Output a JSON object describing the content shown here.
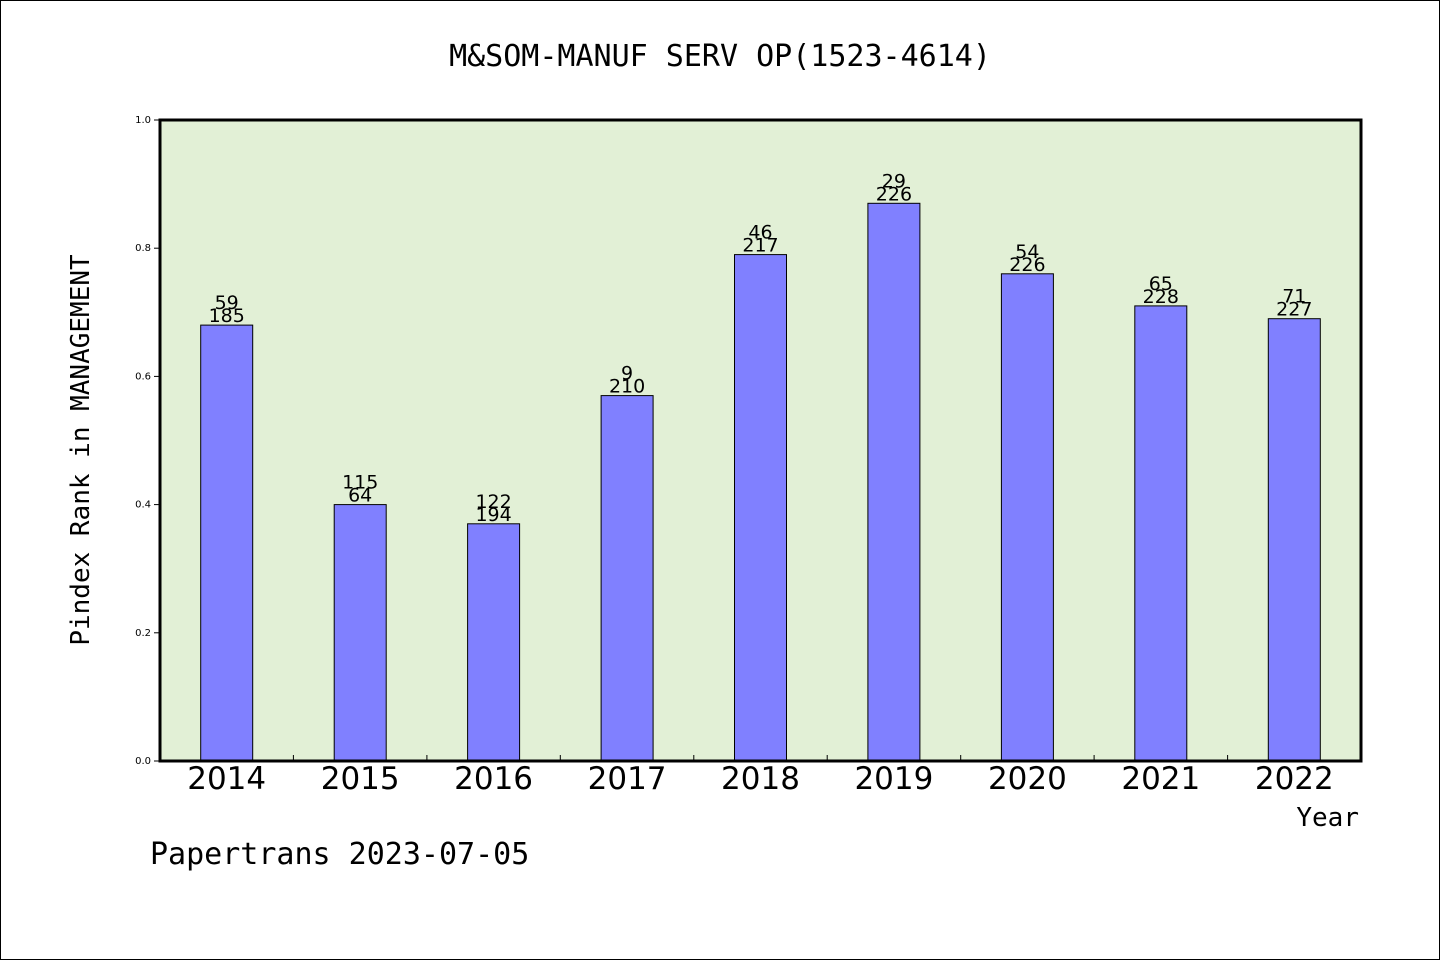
{
  "chart_data": {
    "type": "bar",
    "title": "M&SOM-MANUF SERV OP(1523-4614)",
    "xlabel": "Year",
    "ylabel": "Pindex Rank in MANAGEMENT",
    "ylim": [
      0,
      1.0
    ],
    "yticks": [
      "0.0",
      "0.2",
      "0.4",
      "0.6",
      "0.8",
      "1.0"
    ],
    "categories": [
      "2014",
      "2015",
      "2016",
      "2017",
      "2018",
      "2019",
      "2020",
      "2021",
      "2022"
    ],
    "values": [
      0.68,
      0.4,
      0.37,
      0.57,
      0.79,
      0.87,
      0.76,
      0.71,
      0.69
    ],
    "labels_top": [
      "59",
      "115",
      "122",
      "9",
      "46",
      "29",
      "54",
      "65",
      "71"
    ],
    "labels_bottom": [
      "185",
      "64",
      "194",
      "210",
      "217",
      "226",
      "226",
      "228",
      "227"
    ],
    "grid": false,
    "colors": {
      "plot_background": "#e2f0d6",
      "bar_fill": "#8080ff",
      "bar_stroke": "#000000"
    }
  },
  "footer": {
    "credit": "Papertrans 2023-07-05"
  }
}
